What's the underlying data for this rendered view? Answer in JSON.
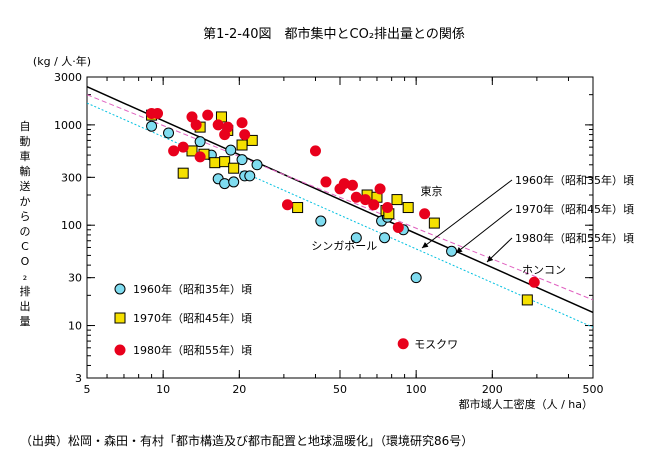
{
  "title": "第1-2-40図　都市集中とCO₂排出量との関係",
  "source": "（出典）松岡・森田・有村「都市構造及び都市配置と地球温暖化」（環境研究86号）",
  "chart_data": {
    "type": "scatter",
    "x_scale": "log",
    "y_scale": "log",
    "xlim": [
      5,
      500
    ],
    "ylim": [
      3,
      3000
    ],
    "x_ticks": [
      5,
      10,
      20,
      50,
      100,
      200,
      500
    ],
    "x_tick_labels": [
      "5",
      "10",
      "20",
      "50",
      "100",
      "200",
      "500"
    ],
    "y_ticks": [
      3,
      10,
      30,
      100,
      300,
      1000,
      3000
    ],
    "y_tick_labels": [
      "3",
      "10",
      "30",
      "100",
      "300",
      "1000",
      "3000"
    ],
    "y_unit": "(kg / 人·年)",
    "ylabel": "自動車輸送からのCO₂排出量",
    "xlabel": "都市域人工密度（人 / ha）",
    "series": [
      {
        "name": "1960年（昭和35年）頃",
        "marker": "circle",
        "color": "#7fdcf0",
        "x": [
          9,
          10.5,
          14,
          15.5,
          16.5,
          17.5,
          18.5,
          19,
          20.5,
          21,
          22,
          23.5,
          42,
          58,
          73,
          75,
          77,
          89,
          100,
          138
        ],
        "y": [
          970,
          830,
          680,
          500,
          290,
          260,
          560,
          270,
          450,
          310,
          310,
          400,
          110,
          75,
          110,
          75,
          120,
          90,
          30,
          55
        ]
      },
      {
        "name": "1970年（昭和45年）頃",
        "marker": "square",
        "color": "#f5e000",
        "x": [
          9,
          12,
          13,
          14,
          14.5,
          16,
          17,
          17.5,
          18,
          19,
          20.5,
          22.5,
          34,
          64,
          70,
          76,
          78,
          84,
          93,
          118,
          275
        ],
        "y": [
          1250,
          330,
          550,
          950,
          510,
          420,
          1200,
          430,
          880,
          370,
          630,
          700,
          150,
          200,
          190,
          140,
          130,
          180,
          150,
          105,
          18
        ]
      },
      {
        "name": "1980年（昭和55年）頃",
        "marker": "circle",
        "color": "#e8001c",
        "x": [
          9,
          9.5,
          11,
          12,
          13,
          13.5,
          14,
          15,
          16.5,
          17.5,
          18,
          20.5,
          21,
          31,
          40,
          44,
          50,
          52,
          56,
          58,
          63,
          68,
          72,
          77,
          85,
          108,
          293
        ],
        "y": [
          1300,
          1300,
          550,
          600,
          1200,
          1000,
          480,
          1250,
          1000,
          800,
          950,
          1050,
          800,
          160,
          550,
          270,
          230,
          260,
          250,
          190,
          180,
          160,
          230,
          150,
          95,
          130,
          27
        ]
      }
    ],
    "trend_lines": [
      {
        "name": "1960年（昭和35年）頃",
        "style": "dotted",
        "color": "#00c0e0",
        "x": [
          5,
          500
        ],
        "y": [
          1650,
          9.6
        ]
      },
      {
        "name": "1970年（昭和45年）頃",
        "style": "solid",
        "color": "#000000",
        "x": [
          5,
          500
        ],
        "y": [
          2400,
          13.5
        ]
      },
      {
        "name": "1980年（昭和55年）頃",
        "style": "dashed",
        "color": "#e060c0",
        "x": [
          5,
          500
        ],
        "y": [
          2000,
          18
        ]
      }
    ],
    "annotations": [
      {
        "text": "東京",
        "x": 115,
        "y": 200
      },
      {
        "text": "シンガポール",
        "x": 52,
        "y": 57
      },
      {
        "text": "ホンコン",
        "x": 320,
        "y": 33
      },
      {
        "text": "モスクワ",
        "x": 120,
        "y": 6
      }
    ],
    "legend": {
      "placement": "lower-left",
      "items": [
        "1960年（昭和35年）頃",
        "1970年（昭和45年）頃",
        "1980年（昭和55年）頃"
      ]
    },
    "line_legend": {
      "placement": "right",
      "items": [
        "1960年（昭和35年）頃",
        "1970年（昭和45年）頃",
        "1980年（昭和55年）頃"
      ]
    }
  }
}
